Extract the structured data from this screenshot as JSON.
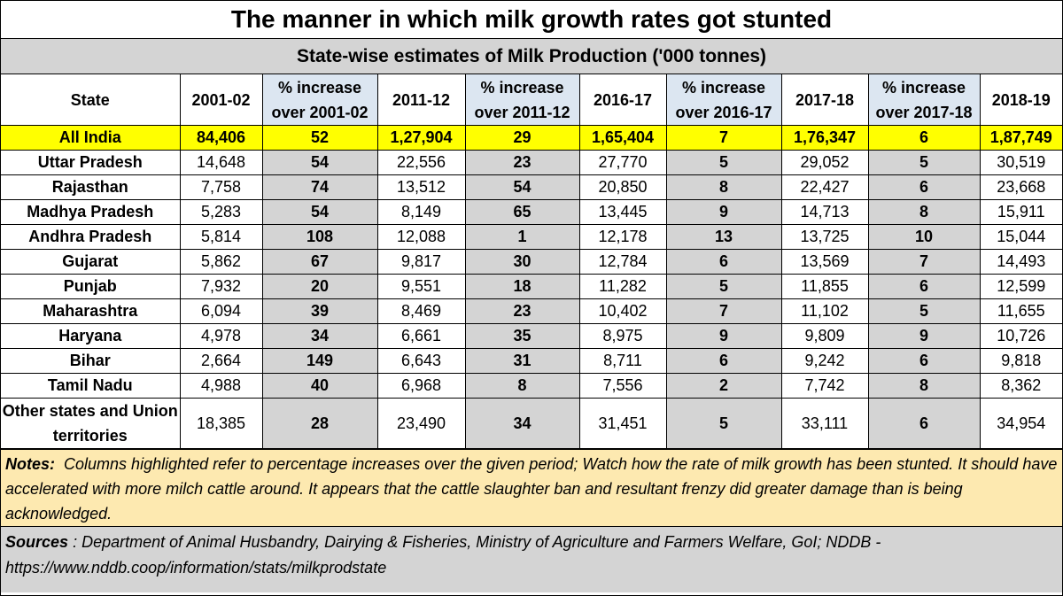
{
  "title": "The manner in which milk growth rates got stunted",
  "chart_data": {
    "type": "table",
    "subtitle": "State-wise estimates of Milk Production ('000 tonnes)",
    "columns": [
      "State",
      "2001-02",
      "% increase over 2001-02",
      "2011-12",
      "% increase over 2011-12",
      "2016-17",
      "% increase over 2016-17",
      "2017-18",
      "% increase over 2017-18",
      "2018-19"
    ],
    "rows": [
      {
        "state": "All India",
        "values": [
          "84,406",
          "52",
          "1,27,904",
          "29",
          "1,65,404",
          "7",
          "1,76,347",
          "6",
          "1,87,749"
        ]
      },
      {
        "state": "Uttar Pradesh",
        "values": [
          "14,648",
          "54",
          "22,556",
          "23",
          "27,770",
          "5",
          "29,052",
          "5",
          "30,519"
        ]
      },
      {
        "state": "Rajasthan",
        "values": [
          "7,758",
          "74",
          "13,512",
          "54",
          "20,850",
          "8",
          "22,427",
          "6",
          "23,668"
        ]
      },
      {
        "state": "Madhya Pradesh",
        "values": [
          "5,283",
          "54",
          "8,149",
          "65",
          "13,445",
          "9",
          "14,713",
          "8",
          "15,911"
        ]
      },
      {
        "state": "Andhra Pradesh",
        "values": [
          "5,814",
          "108",
          "12,088",
          "1",
          "12,178",
          "13",
          "13,725",
          "10",
          "15,044"
        ]
      },
      {
        "state": "Gujarat",
        "values": [
          "5,862",
          "67",
          "9,817",
          "30",
          "12,784",
          "6",
          "13,569",
          "7",
          "14,493"
        ]
      },
      {
        "state": "Punjab",
        "values": [
          "7,932",
          "20",
          "9,551",
          "18",
          "11,282",
          "5",
          "11,855",
          "6",
          "12,599"
        ]
      },
      {
        "state": "Maharashtra",
        "values": [
          "6,094",
          "39",
          "8,469",
          "23",
          "10,402",
          "7",
          "11,102",
          "5",
          "11,655"
        ]
      },
      {
        "state": "Haryana",
        "values": [
          "4,978",
          "34",
          "6,661",
          "35",
          "8,975",
          "9",
          "9,809",
          "9",
          "10,726"
        ]
      },
      {
        "state": "Bihar",
        "values": [
          "2,664",
          "149",
          "6,643",
          "31",
          "8,711",
          "6",
          "9,242",
          "6",
          "9,818"
        ]
      },
      {
        "state": "Tamil Nadu",
        "values": [
          "4,988",
          "40",
          "6,968",
          "8",
          "7,556",
          "2",
          "7,742",
          "8",
          "8,362"
        ]
      },
      {
        "state": "Other states and Union territories",
        "values": [
          "18,385",
          "28",
          "23,490",
          "34",
          "31,451",
          "5",
          "33,111",
          "6",
          "34,954"
        ]
      }
    ]
  },
  "notes": {
    "label": "Notes:",
    "text": "Columns highlighted refer to percentage increases over the given period; Watch how the rate of milk growth has been stunted.  It should have accelerated with more milch cattle around. It appears that the cattle slaughter ban and resultant frenzy did greater damage than is being acknowledged."
  },
  "sources": {
    "label": "Sources",
    "text": ": Department of Animal Husbandry, Dairying & Fisheries, Ministry of Agriculture and Farmers Welfare, GoI; NDDB - https://www.nddb.coop/information/stats/milkprodstate"
  },
  "colors": {
    "highlight_row": "#ffff00",
    "pct_header": "#dce6f1",
    "pct_cells": "#d4d4d4",
    "notes_bg": "#fde9b0",
    "sources_bg": "#d4d4d4"
  }
}
